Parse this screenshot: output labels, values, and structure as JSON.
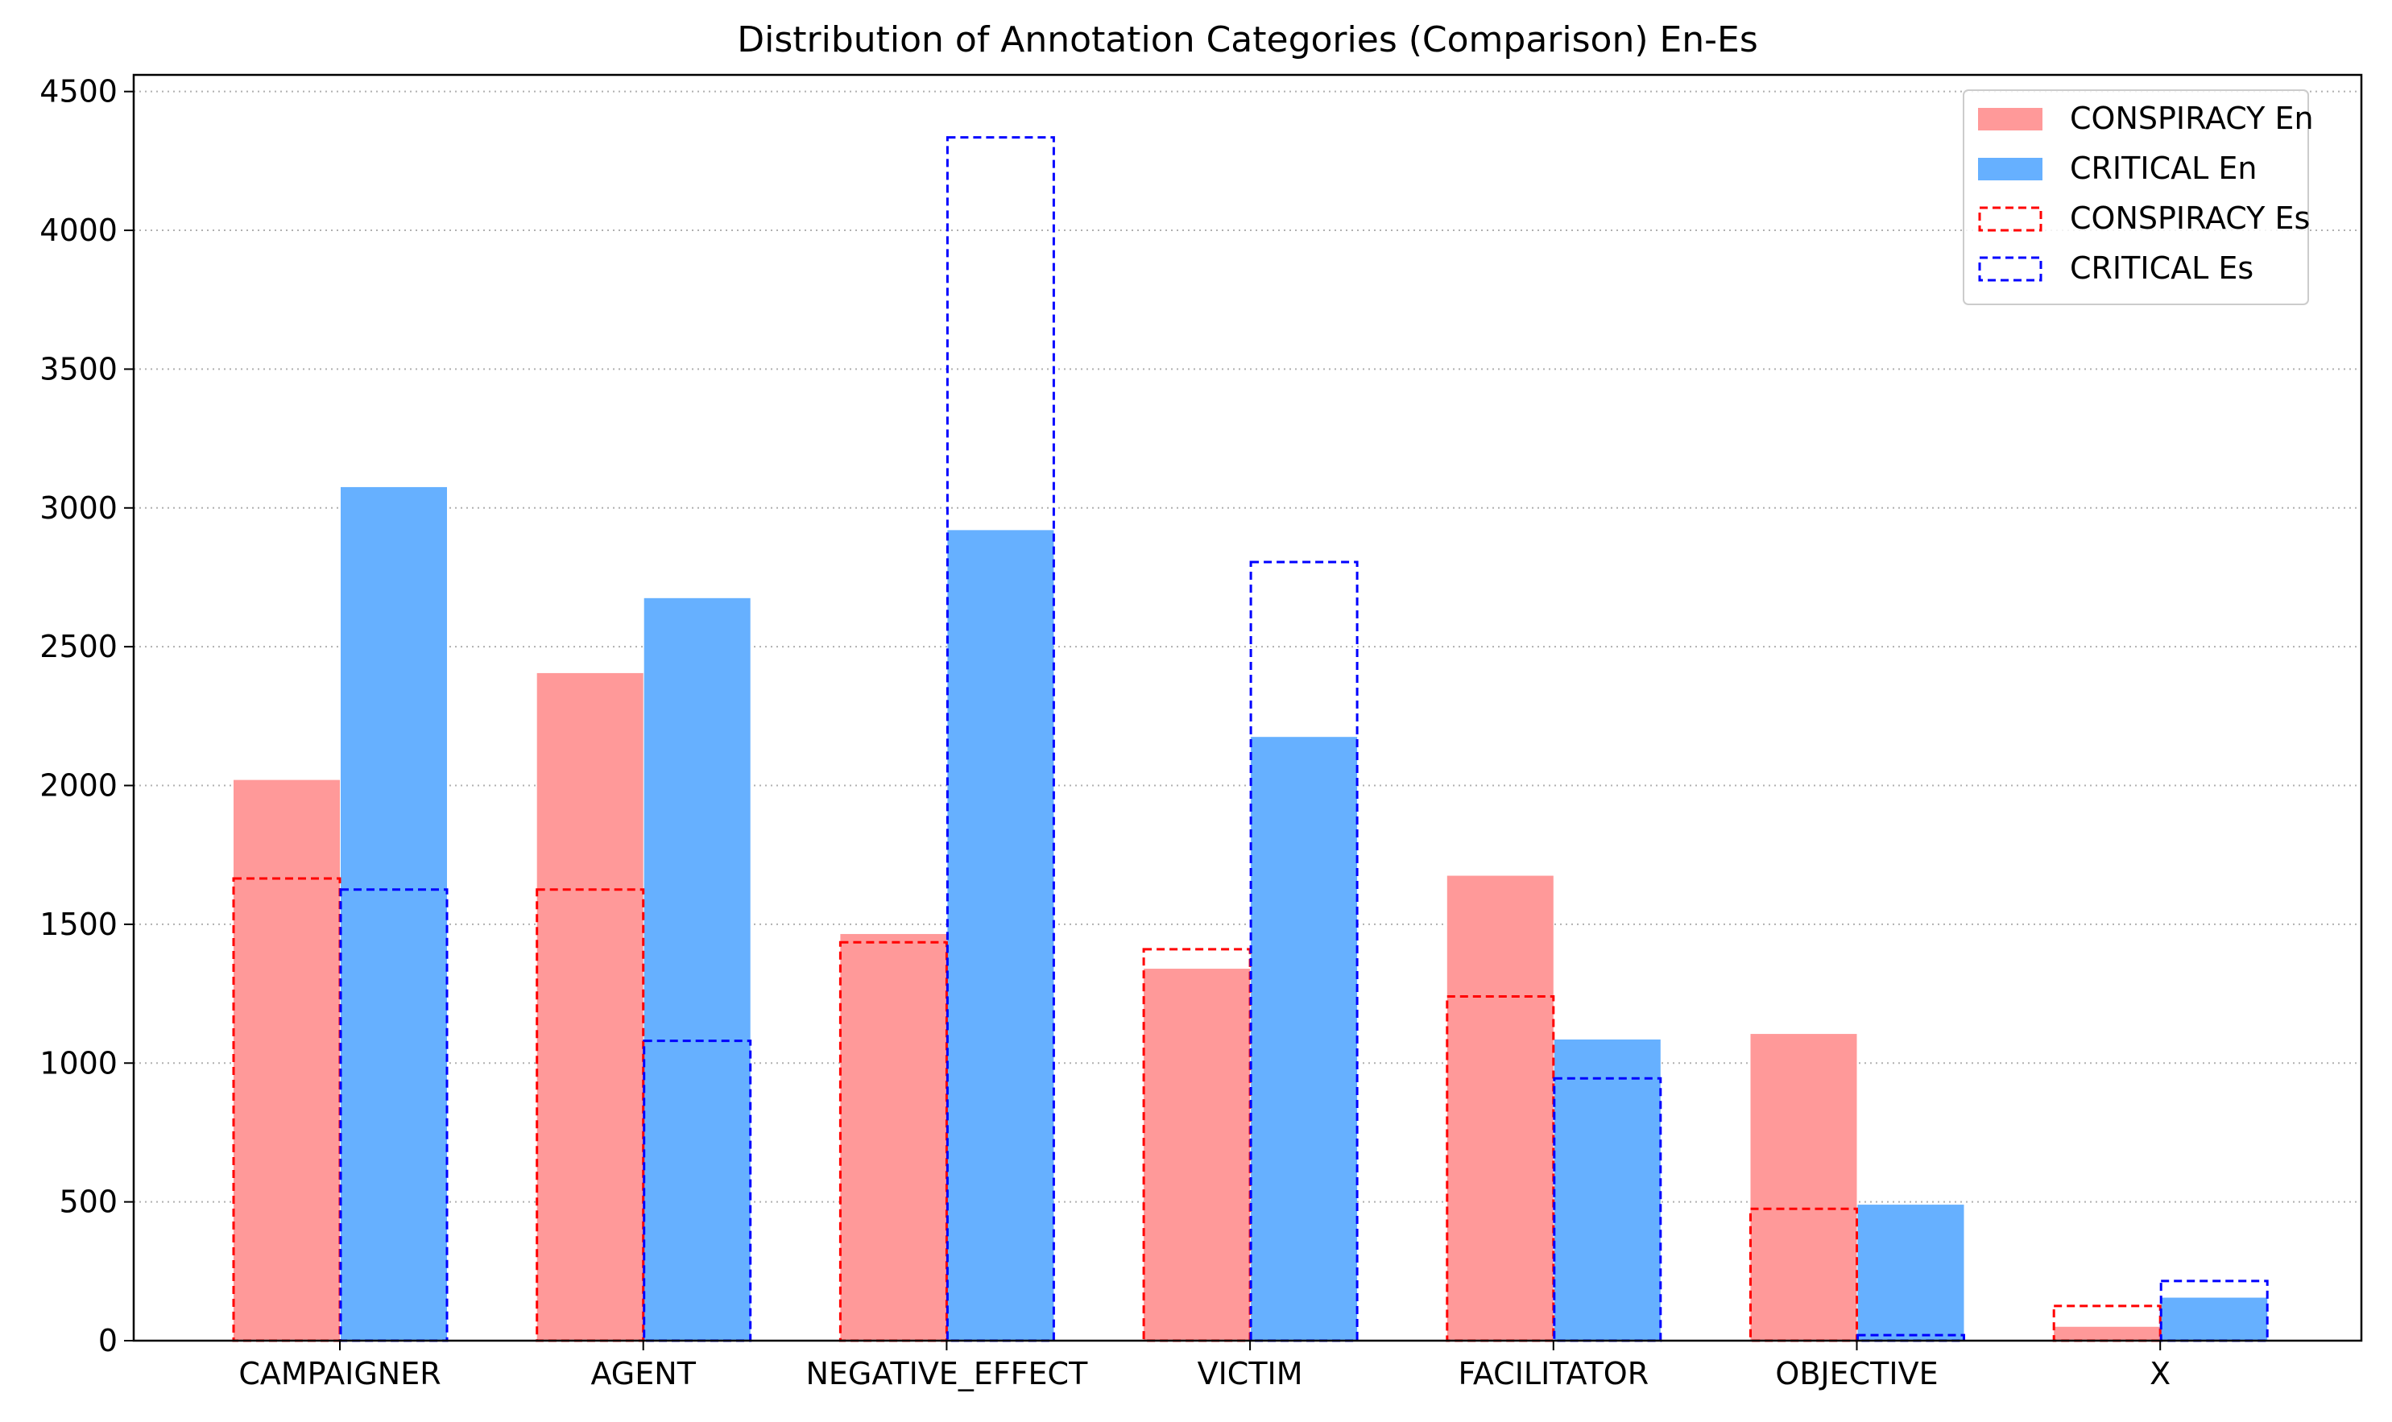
{
  "chart_data": {
    "type": "bar",
    "title": "Distribution of Annotation Categories (Comparison) En-Es",
    "xlabel": "",
    "ylabel": "",
    "categories": [
      "CAMPAIGNER",
      "AGENT",
      "NEGATIVE_EFFECT",
      "VICTIM",
      "FACILITATOR",
      "OBJECTIVE",
      "X"
    ],
    "ylim": [
      0,
      4560
    ],
    "yticks": [
      0,
      500,
      1000,
      1500,
      2000,
      2500,
      3000,
      3500,
      4000,
      4500
    ],
    "grid": "y-dotted",
    "legend_position": "top-right",
    "series": [
      {
        "name": "CONSPIRACY En",
        "style": "filled",
        "color": "#ff9999",
        "values": [
          2020,
          2405,
          1465,
          1340,
          1675,
          1105,
          50
        ]
      },
      {
        "name": "CRITICAL En",
        "style": "filled",
        "color": "#66b0ff",
        "values": [
          3075,
          2675,
          2920,
          2175,
          1085,
          490,
          155
        ]
      },
      {
        "name": "CONSPIRACY Es",
        "style": "dashed-outline",
        "color": "#ff0000",
        "values": [
          1665,
          1625,
          1435,
          1410,
          1240,
          475,
          125
        ]
      },
      {
        "name": "CRITICAL Es",
        "style": "dashed-outline",
        "color": "#0000ff",
        "values": [
          1625,
          1080,
          4335,
          2805,
          945,
          20,
          215
        ]
      }
    ]
  }
}
